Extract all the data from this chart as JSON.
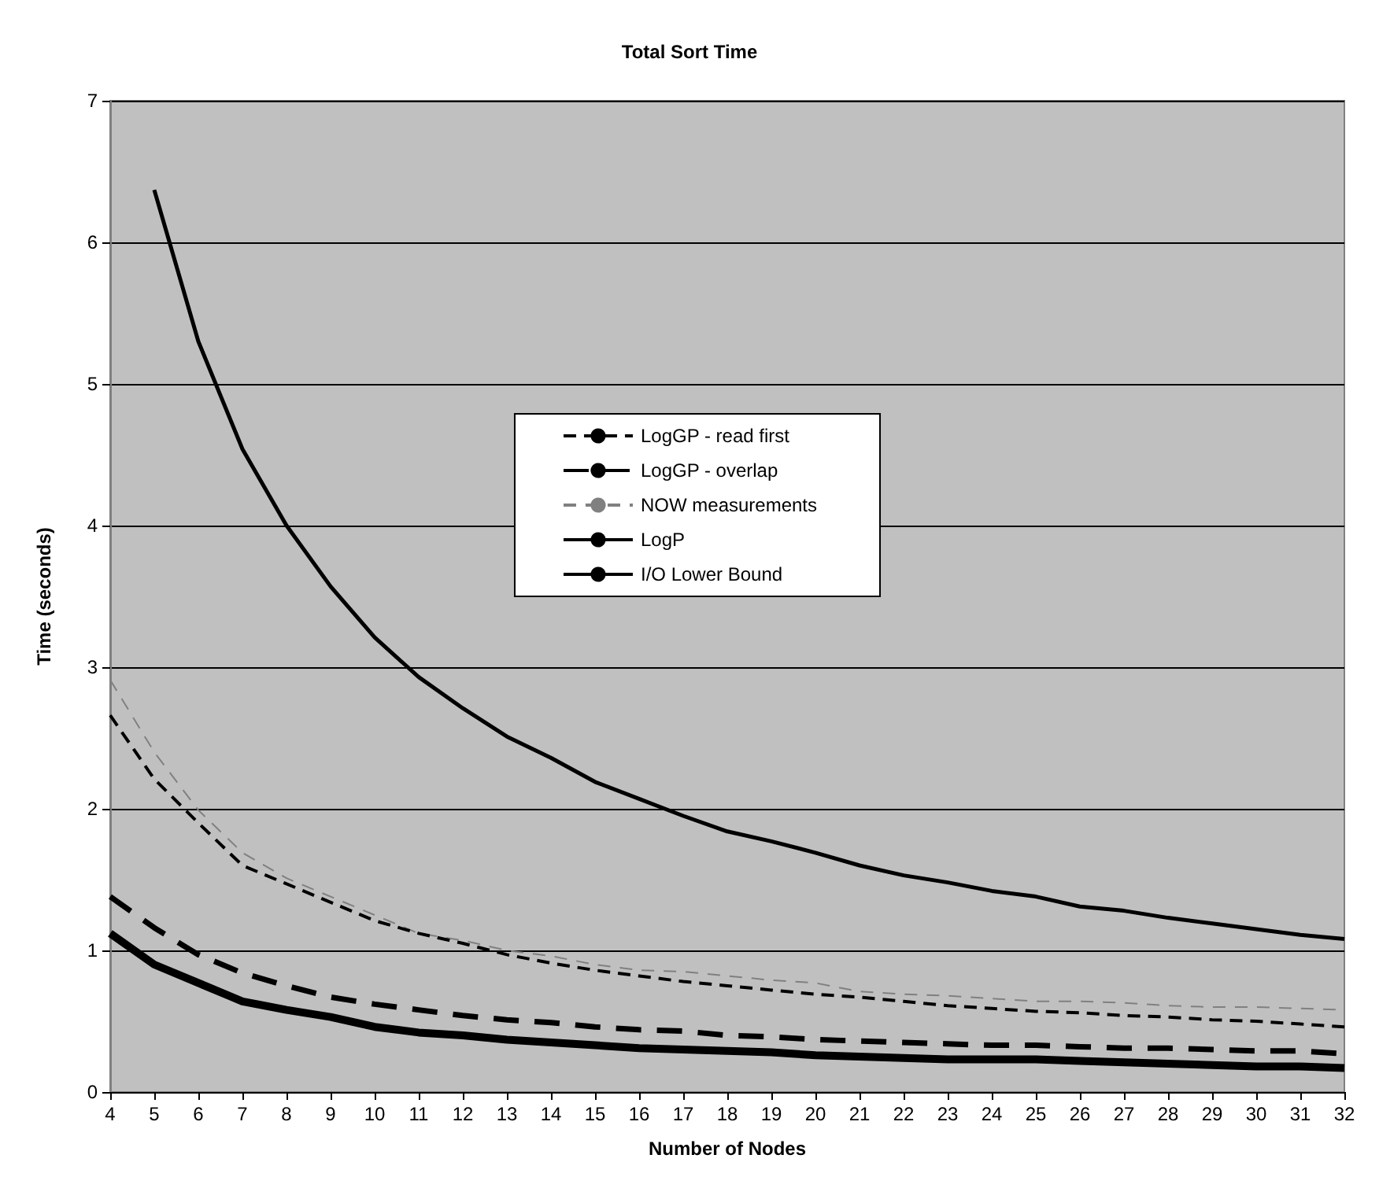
{
  "chart_data": {
    "type": "line",
    "title": "Total Sort Time",
    "xlabel": "Number of Nodes",
    "ylabel": "Time (seconds)",
    "categories": [
      "4",
      "5",
      "6",
      "7",
      "8",
      "9",
      "10",
      "11",
      "12",
      "13",
      "14",
      "15",
      "16",
      "17",
      "18",
      "19",
      "20",
      "21",
      "22",
      "23",
      "24",
      "25",
      "26",
      "27",
      "28",
      "29",
      "30",
      "31",
      "32"
    ],
    "ylim": [
      0,
      7
    ],
    "yticks": [
      0,
      1,
      2,
      3,
      4,
      5,
      6,
      7
    ],
    "grid": "y",
    "legend": "center",
    "marker": "none",
    "series": [
      {
        "name": "LogGP - read first",
        "color": "#000000",
        "line_style": "dashed",
        "values": [
          2.66,
          2.21,
          1.9,
          1.6,
          1.47,
          1.34,
          1.21,
          1.12,
          1.05,
          0.97,
          0.91,
          0.86,
          0.82,
          0.78,
          0.75,
          0.72,
          0.69,
          0.67,
          0.64,
          0.61,
          0.59,
          0.57,
          0.56,
          0.54,
          0.53,
          0.51,
          0.5,
          0.48,
          0.46
        ]
      },
      {
        "name": "LogGP - overlap",
        "color": "#000000",
        "line_style": "dashed",
        "values": [
          1.38,
          1.16,
          0.97,
          0.84,
          0.75,
          0.67,
          0.62,
          0.58,
          0.54,
          0.51,
          0.49,
          0.46,
          0.44,
          0.43,
          0.4,
          0.39,
          0.37,
          0.36,
          0.35,
          0.34,
          0.33,
          0.33,
          0.32,
          0.31,
          0.31,
          0.3,
          0.29,
          0.29,
          0.27
        ]
      },
      {
        "name": "NOW measurements",
        "color": "#808080",
        "line_style": "dashed",
        "values": [
          2.91,
          2.4,
          1.99,
          1.69,
          1.51,
          1.38,
          1.25,
          1.12,
          1.07,
          1.0,
          0.96,
          0.9,
          0.86,
          0.85,
          0.82,
          0.79,
          0.77,
          0.71,
          0.69,
          0.68,
          0.66,
          0.64,
          0.64,
          0.63,
          0.61,
          0.6,
          0.6,
          0.59,
          0.58
        ]
      },
      {
        "name": "LogP",
        "color": "#000000",
        "line_style": "solid",
        "values": [
          null,
          6.37,
          5.3,
          4.54,
          4.0,
          3.57,
          3.21,
          2.93,
          2.71,
          2.51,
          2.36,
          2.19,
          2.07,
          1.95,
          1.84,
          1.77,
          1.69,
          1.6,
          1.53,
          1.48,
          1.42,
          1.38,
          1.31,
          1.28,
          1.23,
          1.19,
          1.15,
          1.11,
          1.08
        ]
      },
      {
        "name": "I/O Lower Bound",
        "color": "#000000",
        "line_style": "solid",
        "values": [
          1.12,
          0.9,
          0.77,
          0.64,
          0.58,
          0.53,
          0.46,
          0.42,
          0.4,
          0.37,
          0.35,
          0.33,
          0.31,
          0.3,
          0.29,
          0.28,
          0.26,
          0.25,
          0.24,
          0.23,
          0.23,
          0.23,
          0.22,
          0.21,
          0.2,
          0.19,
          0.18,
          0.18,
          0.17
        ]
      }
    ]
  }
}
